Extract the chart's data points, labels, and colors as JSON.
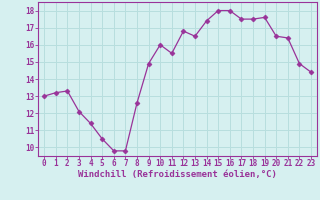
{
  "x": [
    0,
    1,
    2,
    3,
    4,
    5,
    6,
    7,
    8,
    9,
    10,
    11,
    12,
    13,
    14,
    15,
    16,
    17,
    18,
    19,
    20,
    21,
    22,
    23
  ],
  "y": [
    13.0,
    13.2,
    13.3,
    12.1,
    11.4,
    10.5,
    9.8,
    9.8,
    12.6,
    14.9,
    16.0,
    15.5,
    16.8,
    16.5,
    17.4,
    18.0,
    18.0,
    17.5,
    17.5,
    17.6,
    16.5,
    16.4,
    14.9,
    14.4
  ],
  "line_color": "#993399",
  "marker": "D",
  "marker_size": 2.5,
  "bg_color": "#d6f0f0",
  "grid_color": "#b8dede",
  "xlabel": "Windchill (Refroidissement éolien,°C)",
  "ylabel": "",
  "title": "",
  "xlim": [
    -0.5,
    23.5
  ],
  "ylim": [
    9.5,
    18.5
  ],
  "yticks": [
    10,
    11,
    12,
    13,
    14,
    15,
    16,
    17,
    18
  ],
  "xticks": [
    0,
    1,
    2,
    3,
    4,
    5,
    6,
    7,
    8,
    9,
    10,
    11,
    12,
    13,
    14,
    15,
    16,
    17,
    18,
    19,
    20,
    21,
    22,
    23
  ],
  "tick_color": "#993399",
  "label_color": "#993399",
  "tick_fontsize": 5.5,
  "xlabel_fontsize": 6.5
}
